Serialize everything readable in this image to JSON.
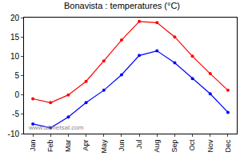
{
  "chart_data": {
    "type": "line",
    "title": "Bonavista : temperatures (°C)",
    "categories": [
      "Jan",
      "Feb",
      "Mar",
      "Apr",
      "May",
      "Jun",
      "Jul",
      "Aug",
      "Sep",
      "Oct",
      "Nov",
      "Dec"
    ],
    "series": [
      {
        "color": "#ff0000",
        "marker": "circle",
        "values": [
          -1,
          -2,
          0,
          3.5,
          8.8,
          14.2,
          19,
          18.7,
          15,
          10,
          5.5,
          1.2
        ]
      },
      {
        "color": "#0000ff",
        "marker": "circle",
        "values": [
          -7.5,
          -8.5,
          -5.7,
          -2,
          1.2,
          5.2,
          10.2,
          11.4,
          8.3,
          4.2,
          0.3,
          -4.5
        ]
      }
    ],
    "ylim": [
      -10,
      20
    ],
    "yticks": [
      -10,
      -5,
      0,
      5,
      10,
      15,
      20
    ],
    "grid": false,
    "annotations": [
      "www.allmetsat.com"
    ]
  }
}
